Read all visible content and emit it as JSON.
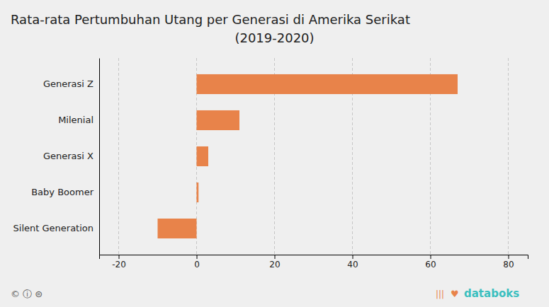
{
  "chart_data": {
    "type": "bar",
    "orientation": "horizontal",
    "title": "Rata-rata Pertumbuhan Utang per Generasi di Amerika Serikat",
    "subtitle": "(2019-2020)",
    "categories": [
      "Silent Generation",
      "Baby Boomer",
      "Generasi X",
      "Milenial",
      "Generasi Z"
    ],
    "values": [
      -10,
      0.5,
      3,
      11,
      67
    ],
    "color": "#E8834A",
    "xlim": [
      -25,
      85
    ],
    "xticks": [
      -20,
      0,
      20,
      40,
      60,
      80
    ],
    "grid": true,
    "annotations": [
      {
        "text": "© ⓘ ⊜",
        "color": "#555555"
      },
      {
        "text": "|||",
        "color": "#E8834A"
      },
      {
        "text": "♥",
        "color": "#E8834A"
      },
      {
        "text": "databoks",
        "color": "#3BBFBF"
      }
    ]
  }
}
